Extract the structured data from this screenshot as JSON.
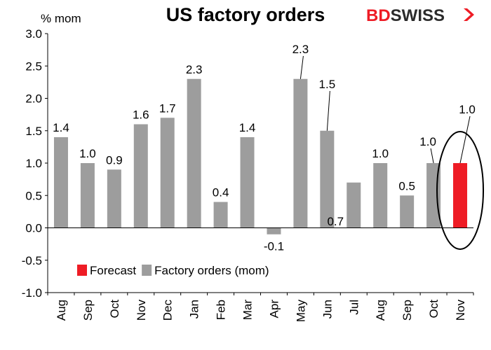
{
  "chart_data": {
    "type": "bar",
    "title": "US factory orders",
    "ylabel": "% mom",
    "ylim": [
      -1.0,
      3.0
    ],
    "yticks": [
      "-1.0",
      "-0.5",
      "0.0",
      "0.5",
      "1.0",
      "1.5",
      "2.0",
      "2.5",
      "3.0"
    ],
    "categories": [
      "Aug",
      "Sep",
      "Oct",
      "Nov",
      "Dec",
      "Jan",
      "Feb",
      "Mar",
      "Apr",
      "May",
      "Jun",
      "Jul",
      "Aug",
      "Sep",
      "Oct",
      "Nov"
    ],
    "values": [
      1.4,
      1.0,
      0.9,
      1.6,
      1.7,
      2.3,
      0.4,
      1.4,
      -0.1,
      2.3,
      1.5,
      0.7,
      1.0,
      0.5,
      1.0,
      1.0
    ],
    "labels": [
      "1.4",
      "1.0",
      "0.9",
      "1.6",
      "1.7",
      "2.3",
      "0.4",
      "1.4",
      "-0.1",
      "2.3",
      "1.5",
      "0.7",
      "1.0",
      "0.5",
      "1.0",
      "1.0"
    ],
    "kinds": [
      "actual",
      "actual",
      "actual",
      "actual",
      "actual",
      "actual",
      "actual",
      "actual",
      "actual",
      "actual",
      "actual",
      "actual",
      "actual",
      "actual",
      "actual",
      "forecast"
    ],
    "series": [
      {
        "name": "Forecast",
        "color": "#ee1c25"
      },
      {
        "name": "Factory orders (mom)",
        "color": "#9d9d9d"
      }
    ],
    "grid": false,
    "legend_position": "bottom-left",
    "highlighted_category": "Nov"
  },
  "logo": {
    "part1": "BD",
    "part2": "SWISS",
    "color1": "#ee1c25",
    "color2": "#2b2b2b"
  }
}
